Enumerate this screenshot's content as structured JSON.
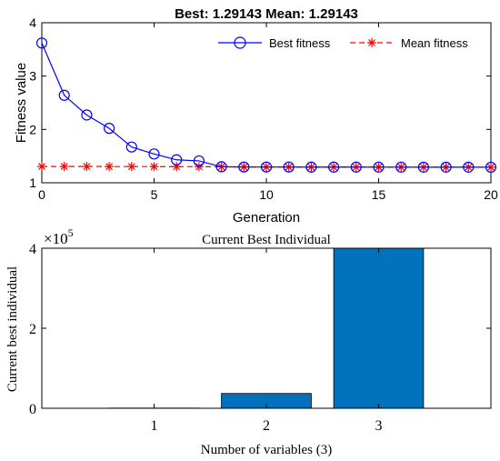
{
  "chart_data": [
    {
      "type": "line",
      "title": "Best: 1.29143 Mean: 1.29143",
      "xlabel": "Generation",
      "ylabel": "Fitness value",
      "xlim": [
        0,
        20
      ],
      "ylim": [
        1,
        4
      ],
      "x_ticks": [
        0,
        5,
        10,
        15,
        20
      ],
      "y_ticks": [
        1,
        2,
        3,
        4
      ],
      "grid": false,
      "legend_placement": "top-right",
      "x": [
        0,
        1,
        2,
        3,
        4,
        5,
        6,
        7,
        8,
        9,
        10,
        11,
        12,
        13,
        14,
        15,
        16,
        17,
        18,
        19,
        20
      ],
      "series": [
        {
          "name": "Best fitness",
          "color": "#0000ff",
          "marker": "circle",
          "line_style": "solid",
          "values": [
            3.62,
            2.64,
            2.27,
            2.02,
            1.67,
            1.54,
            1.43,
            1.41,
            1.3,
            1.295,
            1.295,
            1.295,
            1.294,
            1.294,
            1.294,
            1.293,
            1.293,
            1.292,
            1.292,
            1.292,
            1.291
          ]
        },
        {
          "name": "Mean fitness",
          "color": "#ff0000",
          "marker": "asterisk",
          "line_style": "dashed",
          "values": [
            1.305,
            1.305,
            1.305,
            1.304,
            1.304,
            1.303,
            1.302,
            1.301,
            1.3,
            1.297,
            1.296,
            1.295,
            1.294,
            1.294,
            1.294,
            1.293,
            1.293,
            1.292,
            1.292,
            1.292,
            1.291
          ]
        }
      ]
    },
    {
      "type": "bar",
      "title": "Current Best Individual",
      "xlabel": "Number of variables (3)",
      "ylabel": "Current best individual",
      "categories": [
        "1",
        "2",
        "3"
      ],
      "values": [
        500,
        37000,
        400000
      ],
      "ylim": [
        0,
        400000
      ],
      "y_ticks": [
        0,
        2,
        4
      ],
      "y_exponent_label": "×10",
      "y_exponent": "5",
      "bar_color": "#0072bd",
      "grid": false
    }
  ]
}
